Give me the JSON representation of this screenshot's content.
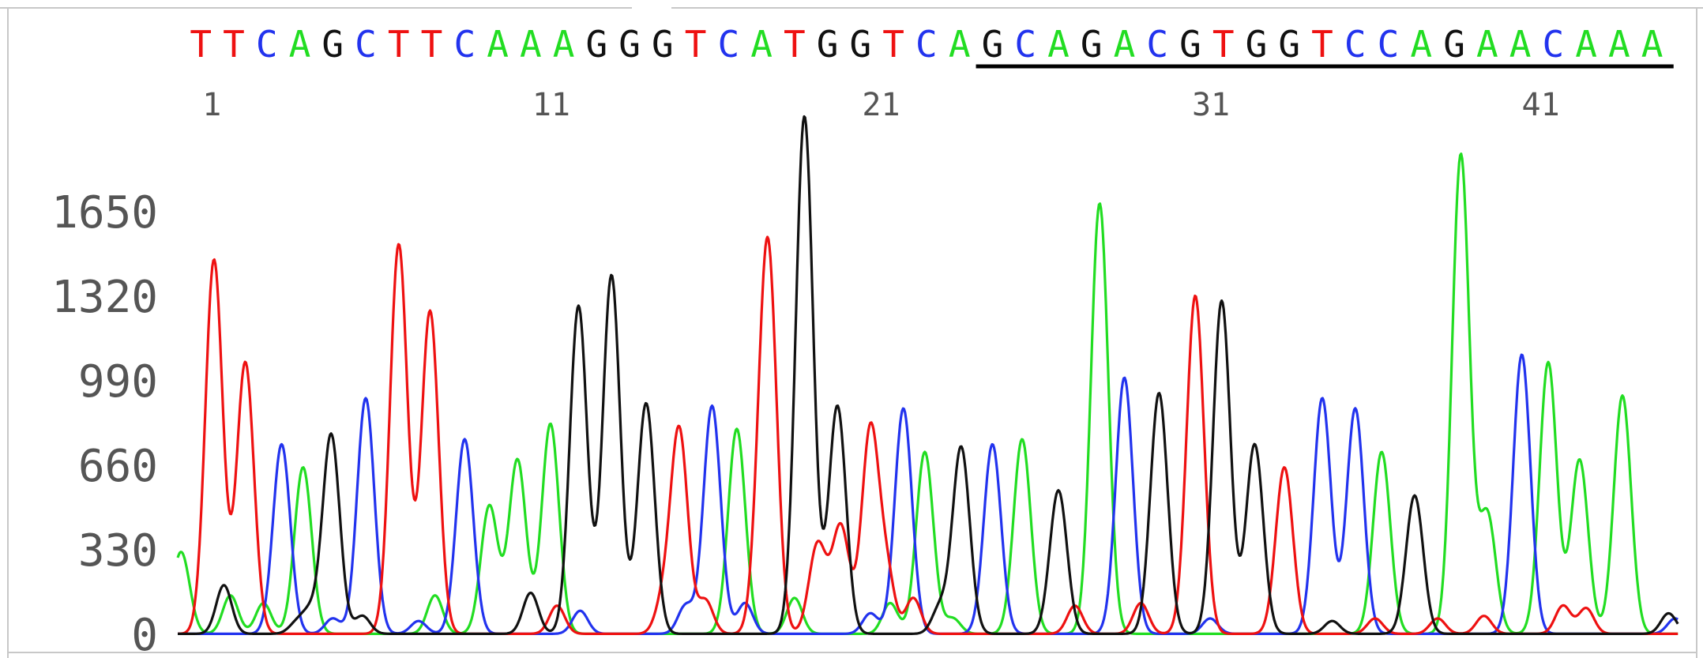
{
  "chart_data": {
    "type": "line",
    "sequence": [
      "T",
      "T",
      "C",
      "A",
      "G",
      "C",
      "T",
      "T",
      "C",
      "A",
      "A",
      "A",
      "G",
      "G",
      "G",
      "T",
      "C",
      "A",
      "T",
      "G",
      "G",
      "T",
      "C",
      "A",
      "G",
      "C",
      "A",
      "G",
      "A",
      "C",
      "G",
      "T",
      "G",
      "G",
      "T",
      "C",
      "C",
      "A",
      "G",
      "A",
      "A",
      "C",
      "A",
      "A",
      "A"
    ],
    "position_labels": [
      {
        "pos": 1,
        "text": "1"
      },
      {
        "pos": 11,
        "text": "11"
      },
      {
        "pos": 21,
        "text": "21"
      },
      {
        "pos": 31,
        "text": "31"
      },
      {
        "pos": 41,
        "text": "41"
      }
    ],
    "underline_range": [
      25,
      45
    ],
    "yticks": [
      "0",
      "330",
      "660",
      "990",
      "1320",
      "1650"
    ],
    "ylim": [
      0,
      2050
    ],
    "xlim": [
      0.3,
      45.8
    ],
    "colors": {
      "A": "#22dd22",
      "C": "#2233ee",
      "G": "#111111",
      "T": "#ee1111"
    },
    "peaks": [
      {
        "b": "T",
        "x": 1.4,
        "h": 1460
      },
      {
        "b": "T",
        "x": 2.35,
        "h": 1060
      },
      {
        "b": "C",
        "x": 3.45,
        "h": 740
      },
      {
        "b": "A",
        "x": 4.1,
        "h": 650
      },
      {
        "b": "G",
        "x": 4.95,
        "h": 780
      },
      {
        "b": "C",
        "x": 6.0,
        "h": 920
      },
      {
        "b": "T",
        "x": 7.0,
        "h": 1520
      },
      {
        "b": "T",
        "x": 7.95,
        "h": 1260
      },
      {
        "b": "C",
        "x": 9.0,
        "h": 760
      },
      {
        "b": "A",
        "x": 9.75,
        "h": 500
      },
      {
        "b": "A",
        "x": 10.6,
        "h": 680
      },
      {
        "b": "A",
        "x": 11.6,
        "h": 820
      },
      {
        "b": "G",
        "x": 12.45,
        "h": 1280
      },
      {
        "b": "G",
        "x": 13.45,
        "h": 1400
      },
      {
        "b": "G",
        "x": 14.5,
        "h": 900
      },
      {
        "b": "T",
        "x": 15.5,
        "h": 800
      },
      {
        "b": "C",
        "x": 16.5,
        "h": 890
      },
      {
        "b": "A",
        "x": 17.25,
        "h": 800
      },
      {
        "b": "T",
        "x": 18.2,
        "h": 1470
      },
      {
        "b": "G",
        "x": 19.3,
        "h": 2020
      },
      {
        "b": "G",
        "x": 20.3,
        "h": 890
      },
      {
        "b": "T",
        "x": 21.3,
        "h": 800
      },
      {
        "b": "C",
        "x": 22.3,
        "h": 880
      },
      {
        "b": "A",
        "x": 22.95,
        "h": 710
      },
      {
        "b": "G",
        "x": 24.05,
        "h": 730
      },
      {
        "b": "C",
        "x": 25.0,
        "h": 740
      },
      {
        "b": "A",
        "x": 25.9,
        "h": 760
      },
      {
        "b": "G",
        "x": 27.0,
        "h": 560
      },
      {
        "b": "A",
        "x": 28.25,
        "h": 1680
      },
      {
        "b": "C",
        "x": 29.0,
        "h": 1000
      },
      {
        "b": "G",
        "x": 30.05,
        "h": 940
      },
      {
        "b": "T",
        "x": 31.15,
        "h": 1320
      },
      {
        "b": "G",
        "x": 31.95,
        "h": 1300
      },
      {
        "b": "G",
        "x": 32.95,
        "h": 740
      },
      {
        "b": "T",
        "x": 33.85,
        "h": 650
      },
      {
        "b": "C",
        "x": 35.0,
        "h": 920
      },
      {
        "b": "C",
        "x": 36.0,
        "h": 880
      },
      {
        "b": "A",
        "x": 36.8,
        "h": 710
      },
      {
        "b": "G",
        "x": 37.8,
        "h": 540
      },
      {
        "b": "A",
        "x": 39.2,
        "h": 1870
      },
      {
        "b": "A",
        "x": 40.0,
        "h": 470
      },
      {
        "b": "C",
        "x": 41.05,
        "h": 1090
      },
      {
        "b": "A",
        "x": 41.85,
        "h": 1060
      },
      {
        "b": "A",
        "x": 42.8,
        "h": 680
      },
      {
        "b": "A",
        "x": 44.1,
        "h": 930
      }
    ],
    "minor_peaks": [
      {
        "b": "A",
        "x": 0.4,
        "h": 320
      },
      {
        "b": "G",
        "x": 1.7,
        "h": 190
      },
      {
        "b": "A",
        "x": 1.9,
        "h": 150
      },
      {
        "b": "A",
        "x": 2.9,
        "h": 120
      },
      {
        "b": "G",
        "x": 3.9,
        "h": 40
      },
      {
        "b": "G",
        "x": 4.3,
        "h": 80
      },
      {
        "b": "C",
        "x": 5.0,
        "h": 60
      },
      {
        "b": "G",
        "x": 5.9,
        "h": 70
      },
      {
        "b": "C",
        "x": 7.6,
        "h": 50
      },
      {
        "b": "A",
        "x": 8.1,
        "h": 150
      },
      {
        "b": "G",
        "x": 11.0,
        "h": 160
      },
      {
        "b": "T",
        "x": 11.8,
        "h": 110
      },
      {
        "b": "C",
        "x": 12.5,
        "h": 90
      },
      {
        "b": "T",
        "x": 15.0,
        "h": 110
      },
      {
        "b": "C",
        "x": 15.7,
        "h": 110
      },
      {
        "b": "T",
        "x": 16.3,
        "h": 130
      },
      {
        "b": "T",
        "x": 17.9,
        "h": 170
      },
      {
        "b": "C",
        "x": 17.5,
        "h": 120
      },
      {
        "b": "A",
        "x": 19.0,
        "h": 140
      },
      {
        "b": "T",
        "x": 19.7,
        "h": 350
      },
      {
        "b": "T",
        "x": 20.4,
        "h": 420
      },
      {
        "b": "T",
        "x": 21.8,
        "h": 220
      },
      {
        "b": "C",
        "x": 21.3,
        "h": 80
      },
      {
        "b": "A",
        "x": 21.9,
        "h": 120
      },
      {
        "b": "T",
        "x": 22.6,
        "h": 140
      },
      {
        "b": "G",
        "x": 23.4,
        "h": 100
      },
      {
        "b": "A",
        "x": 23.8,
        "h": 60
      },
      {
        "b": "T",
        "x": 27.5,
        "h": 110
      },
      {
        "b": "T",
        "x": 29.5,
        "h": 120
      },
      {
        "b": "C",
        "x": 31.6,
        "h": 60
      },
      {
        "b": "G",
        "x": 35.3,
        "h": 50
      },
      {
        "b": "T",
        "x": 36.6,
        "h": 60
      },
      {
        "b": "T",
        "x": 38.5,
        "h": 60
      },
      {
        "b": "T",
        "x": 39.9,
        "h": 70
      },
      {
        "b": "T",
        "x": 42.3,
        "h": 110
      },
      {
        "b": "T",
        "x": 43.0,
        "h": 100
      },
      {
        "b": "G",
        "x": 45.5,
        "h": 80
      },
      {
        "b": "C",
        "x": 45.7,
        "h": 60
      }
    ]
  }
}
